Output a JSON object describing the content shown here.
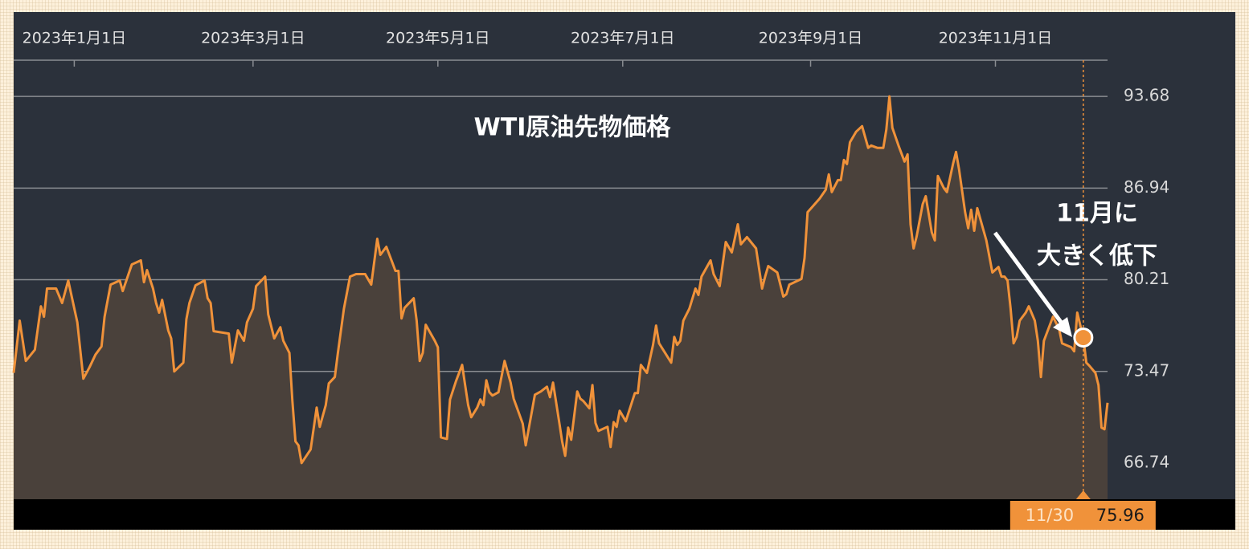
{
  "chart_data": {
    "type": "area",
    "title": "WTI原油先物価格",
    "annotation": [
      "11月に",
      "大きく低下"
    ],
    "color": "#f0923a",
    "fill_color": "#4a413b",
    "grid": true,
    "xlim": [
      "2022-12-12",
      "2023-12-08"
    ],
    "xticks": [
      {
        "value": "2023-01-01",
        "label": "2023年1月1日"
      },
      {
        "value": "2023-03-01",
        "label": "2023年3月1日"
      },
      {
        "value": "2023-05-01",
        "label": "2023年5月1日"
      },
      {
        "value": "2023-07-01",
        "label": "2023年7月1日"
      },
      {
        "value": "2023-09-01",
        "label": "2023年9月1日"
      },
      {
        "value": "2023-11-01",
        "label": "2023年11月1日"
      }
    ],
    "ylim": [
      64.08,
      96.34
    ],
    "yticks": [
      66.74,
      73.47,
      80.21,
      86.94,
      93.68
    ],
    "highlight": {
      "x": "2023-11-30",
      "label": "11/30",
      "value": 75.96
    },
    "x": [
      "2022-12-12",
      "2022-12-14",
      "2022-12-16",
      "2022-12-19",
      "2022-12-21",
      "2022-12-22",
      "2022-12-23",
      "2022-12-26",
      "2022-12-28",
      "2022-12-30",
      "2023-01-02",
      "2023-01-04",
      "2023-01-06",
      "2023-01-08",
      "2023-01-10",
      "2023-01-11",
      "2023-01-13",
      "2023-01-16",
      "2023-01-17",
      "2023-01-20",
      "2023-01-23",
      "2023-01-24",
      "2023-01-25",
      "2023-01-27",
      "2023-01-28",
      "2023-01-29",
      "2023-01-30",
      "2023-02-01",
      "2023-02-02",
      "2023-02-03",
      "2023-02-06",
      "2023-02-07",
      "2023-02-08",
      "2023-02-10",
      "2023-02-13",
      "2023-02-14",
      "2023-02-15",
      "2023-02-16",
      "2023-02-21",
      "2023-02-22",
      "2023-02-24",
      "2023-02-26",
      "2023-02-27",
      "2023-03-01",
      "2023-03-02",
      "2023-03-05",
      "2023-03-06",
      "2023-03-08",
      "2023-03-10",
      "2023-03-11",
      "2023-03-13",
      "2023-03-14",
      "2023-03-15",
      "2023-03-16",
      "2023-03-17",
      "2023-03-20",
      "2023-03-22",
      "2023-03-23",
      "2023-03-25",
      "2023-03-26",
      "2023-03-28",
      "2023-03-29",
      "2023-03-31",
      "2023-04-02",
      "2023-04-04",
      "2023-04-07",
      "2023-04-09",
      "2023-04-11",
      "2023-04-12",
      "2023-04-14",
      "2023-04-16",
      "2023-04-17",
      "2023-04-18",
      "2023-04-19",
      "2023-04-20",
      "2023-04-23",
      "2023-04-24",
      "2023-04-25",
      "2023-04-26",
      "2023-04-27",
      "2023-04-30",
      "2023-05-01",
      "2023-05-02",
      "2023-05-04",
      "2023-05-05",
      "2023-05-07",
      "2023-05-09",
      "2023-05-10",
      "2023-05-11",
      "2023-05-12",
      "2023-05-14",
      "2023-05-15",
      "2023-05-16",
      "2023-05-17",
      "2023-05-18",
      "2023-05-19",
      "2023-05-21",
      "2023-05-23",
      "2023-05-25",
      "2023-05-26",
      "2023-05-29",
      "2023-05-30",
      "2023-06-02",
      "2023-06-04",
      "2023-06-06",
      "2023-06-07",
      "2023-06-08",
      "2023-06-10",
      "2023-06-11",
      "2023-06-12",
      "2023-06-13",
      "2023-06-14",
      "2023-06-16",
      "2023-06-17",
      "2023-06-18",
      "2023-06-20",
      "2023-06-21",
      "2023-06-22",
      "2023-06-23",
      "2023-06-26",
      "2023-06-27",
      "2023-06-28",
      "2023-06-29",
      "2023-06-30",
      "2023-07-02",
      "2023-07-05",
      "2023-07-06",
      "2023-07-07",
      "2023-07-09",
      "2023-07-11",
      "2023-07-12",
      "2023-07-13",
      "2023-07-17",
      "2023-07-18",
      "2023-07-19",
      "2023-07-20",
      "2023-07-21",
      "2023-07-23",
      "2023-07-25",
      "2023-07-26",
      "2023-07-27",
      "2023-07-30",
      "2023-07-31",
      "2023-08-02",
      "2023-08-04",
      "2023-08-06",
      "2023-08-08",
      "2023-08-09",
      "2023-08-11",
      "2023-08-14",
      "2023-08-16",
      "2023-08-17",
      "2023-08-18",
      "2023-08-21",
      "2023-08-23",
      "2023-08-24",
      "2023-08-25",
      "2023-08-29",
      "2023-08-30",
      "2023-08-31",
      "2023-09-04",
      "2023-09-06",
      "2023-09-07",
      "2023-09-08",
      "2023-09-10",
      "2023-09-11",
      "2023-09-12",
      "2023-09-13",
      "2023-09-14",
      "2023-09-16",
      "2023-09-18",
      "2023-09-20",
      "2023-09-21",
      "2023-09-23",
      "2023-09-25",
      "2023-09-26",
      "2023-09-27",
      "2023-09-28",
      "2023-09-30",
      "2023-10-02",
      "2023-10-03",
      "2023-10-04",
      "2023-10-05",
      "2023-10-06",
      "2023-10-08",
      "2023-10-09",
      "2023-10-11",
      "2023-10-12",
      "2023-10-13",
      "2023-10-15",
      "2023-10-16",
      "2023-10-18",
      "2023-10-19",
      "2023-10-20",
      "2023-10-22",
      "2023-10-23",
      "2023-10-24",
      "2023-10-25",
      "2023-10-26",
      "2023-10-29",
      "2023-10-31",
      "2023-11-02",
      "2023-11-03",
      "2023-11-04",
      "2023-11-05",
      "2023-11-06",
      "2023-11-07",
      "2023-11-08",
      "2023-11-09",
      "2023-11-11",
      "2023-11-12",
      "2023-11-14",
      "2023-11-15",
      "2023-11-16",
      "2023-11-17",
      "2023-11-20",
      "2023-11-22",
      "2023-11-23",
      "2023-11-26",
      "2023-11-27",
      "2023-11-28",
      "2023-11-30",
      "2023-12-01",
      "2023-12-02",
      "2023-12-04",
      "2023-12-05",
      "2023-12-06",
      "2023-12-07",
      "2023-12-08"
    ],
    "values": [
      73.36,
      77.2,
      74.24,
      75.07,
      78.26,
      77.49,
      79.56,
      79.56,
      78.5,
      80.15,
      77.08,
      72.94,
      73.77,
      74.71,
      75.31,
      77.49,
      79.85,
      80.15,
      79.38,
      81.33,
      81.63,
      80.03,
      80.92,
      79.56,
      78.5,
      77.79,
      78.73,
      76.49,
      75.9,
      73.47,
      74.12,
      77.31,
      78.5,
      79.79,
      80.15,
      78.85,
      78.5,
      76.43,
      76.25,
      74.12,
      76.49,
      75.72,
      77.08,
      78.08,
      79.74,
      80.44,
      77.67,
      75.9,
      76.72,
      75.72,
      74.83,
      71.29,
      68.33,
      68.04,
      66.74,
      67.74,
      70.82,
      69.4,
      70.99,
      72.59,
      73.06,
      74.83,
      78.08,
      80.44,
      80.62,
      80.62,
      79.85,
      83.22,
      82.04,
      82.63,
      81.45,
      80.86,
      80.86,
      77.37,
      78.14,
      78.85,
      77.2,
      74.24,
      74.83,
      76.9,
      75.72,
      75.25,
      68.63,
      68.51,
      71.41,
      72.77,
      73.95,
      72.47,
      70.99,
      70.11,
      70.82,
      71.41,
      70.99,
      72.82,
      71.94,
      71.7,
      71.94,
      74.24,
      72.65,
      71.47,
      69.63,
      68.04,
      71.76,
      72.0,
      72.35,
      71.58,
      72.65,
      69.81,
      68.33,
      67.27,
      69.34,
      68.45,
      72.0,
      71.47,
      71.29,
      70.76,
      72.47,
      69.69,
      69.1,
      69.4,
      67.92,
      69.75,
      69.4,
      70.58,
      69.81,
      71.88,
      71.88,
      73.95,
      73.36,
      75.42,
      76.84,
      75.54,
      74.12,
      76.01,
      75.42,
      75.72,
      77.2,
      78.08,
      79.56,
      79.09,
      80.44,
      81.63,
      80.62,
      79.74,
      82.98,
      82.22,
      84.28,
      82.81,
      83.34,
      82.51,
      79.56,
      80.44,
      81.21,
      80.74,
      78.97,
      79.14,
      79.85,
      80.27,
      81.8,
      85.17,
      86.17,
      86.82,
      87.95,
      86.65,
      87.53,
      87.53,
      89.01,
      88.71,
      90.31,
      91.08,
      91.49,
      89.9,
      90.07,
      89.9,
      89.9,
      91.25,
      93.68,
      91.37,
      90.07,
      88.89,
      89.42,
      84.28,
      82.51,
      83.4,
      85.76,
      86.35,
      83.69,
      83.1,
      87.83,
      86.94,
      86.65,
      88.71,
      89.6,
      88.3,
      85.17,
      83.99,
      85.35,
      83.81,
      85.47,
      83.1,
      80.74,
      81.15,
      80.44,
      80.44,
      80.15,
      78.08,
      75.54,
      76.01,
      77.2,
      77.79,
      78.26,
      77.2,
      75.72,
      73.06,
      75.72,
      77.49,
      76.6,
      75.54,
      75.25,
      74.95,
      77.79,
      75.96,
      74.12,
      73.89,
      73.36,
      72.47,
      69.34,
      69.22,
      71.17
    ]
  }
}
